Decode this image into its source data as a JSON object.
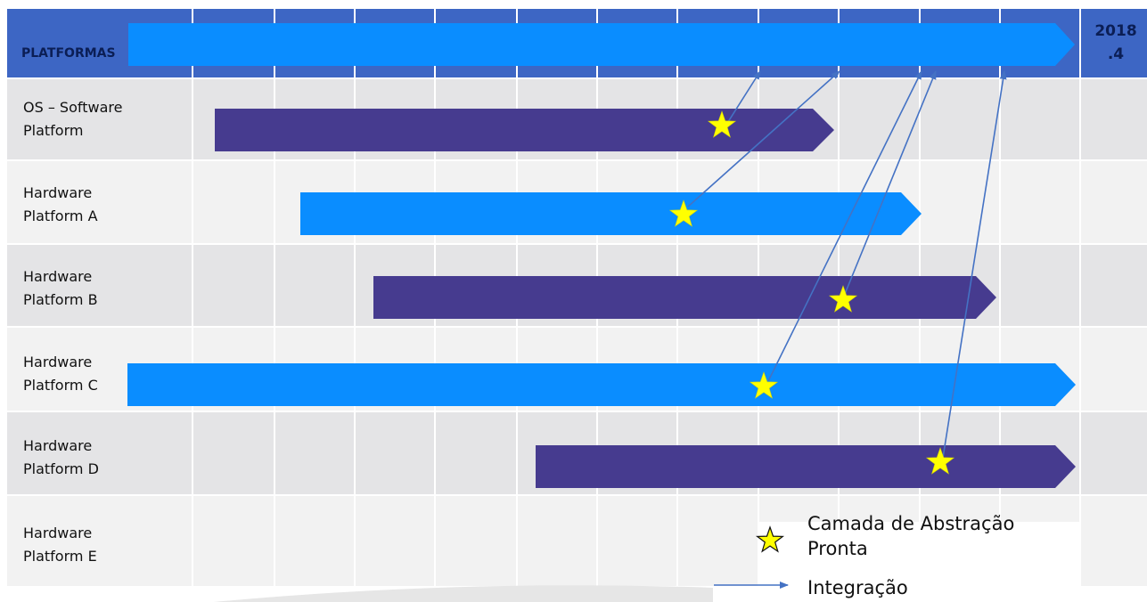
{
  "header": {
    "label": "PLATFORMAS",
    "year_line1": "2018",
    "year_line2": ".4"
  },
  "rows": [
    {
      "line1": "OS – Software",
      "line2": "Platform"
    },
    {
      "line1": "Hardware",
      "line2": "Platform A"
    },
    {
      "line1": "Hardware",
      "line2": "Platform B"
    },
    {
      "line1": "Hardware",
      "line2": "Platform C"
    },
    {
      "line1": "Hardware",
      "line2": "Platform D"
    },
    {
      "line1": "Hardware",
      "line2": "Platform E"
    }
  ],
  "legend": {
    "star_line1": "Camada de Abstração",
    "star_line2": "Pronta",
    "arrow_label": "Integração"
  },
  "colors": {
    "header_bg": "#3d66c4",
    "header_arrow": "#0a8dff",
    "bar_dark": "#463b8f",
    "bar_light": "#0a8dff",
    "star": "#ffff00",
    "connector": "#4472c4",
    "row_dark": "#e4e4e6",
    "row_light": "#f2f2f2"
  }
}
